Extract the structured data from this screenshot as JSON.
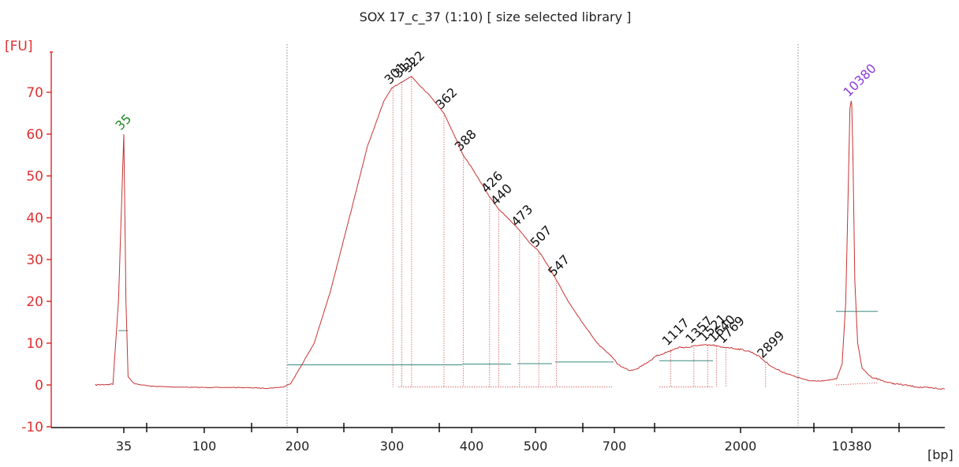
{
  "chart_data": {
    "type": "line",
    "title": "SOX 17_c_37 (1:10)  [ size selected library ]",
    "ylabel": "[FU]",
    "xlabel": "[bp]",
    "ylim": [
      -11,
      76
    ],
    "y_ticks": [
      -10,
      0,
      10,
      20,
      30,
      40,
      50,
      60,
      70
    ],
    "x_tick_labels": [
      "35",
      "100",
      "200",
      "300",
      "400",
      "500",
      "700",
      "2000",
      "10380"
    ],
    "grid": false,
    "colors": {
      "trace": "#c83232",
      "axis": "#e03030",
      "lower_marker": "#1f8a1f",
      "upper_marker": "#8a3cdc",
      "baseline": "#3a8a80"
    },
    "trace": {
      "x": [
        30,
        33,
        34,
        35,
        36,
        37,
        40,
        50,
        70,
        100,
        130,
        160,
        180,
        190,
        200,
        215,
        230,
        250,
        270,
        290,
        300,
        311,
        322,
        330,
        345,
        362,
        375,
        388,
        400,
        426,
        440,
        460,
        473,
        490,
        507,
        525,
        547,
        575,
        610,
        650,
        690,
        720,
        760,
        800,
        850,
        900,
        950,
        1000,
        1100,
        1200,
        1300,
        1400,
        1500,
        1600,
        1700,
        1800,
        2000,
        2300,
        2600,
        2900,
        3300,
        3800,
        4500,
        5500,
        7000,
        8300,
        9000,
        9500,
        9900,
        10100,
        10300,
        10380,
        10500,
        10700,
        11000,
        11500,
        12500,
        15000,
        20000,
        26000
      ],
      "y": [
        0,
        0.2,
        20,
        60,
        20,
        2,
        0.3,
        -0.3,
        -0.5,
        -0.6,
        -0.6,
        -0.8,
        -0.5,
        0.3,
        3,
        10,
        22,
        40,
        57,
        68,
        71,
        72.5,
        73.8,
        72,
        69,
        65,
        60,
        55,
        52,
        45,
        42,
        39,
        37,
        34,
        32,
        29,
        25,
        20,
        15,
        10,
        7,
        5,
        4,
        3.5,
        4,
        5,
        6,
        7,
        8,
        9,
        9,
        9.5,
        9.5,
        9.5,
        9,
        9,
        8.5,
        8,
        7,
        5.5,
        4,
        3,
        2,
        1,
        1,
        1.5,
        5,
        20,
        50,
        66,
        68,
        67,
        55,
        25,
        10,
        4,
        2,
        0.5,
        -0.5,
        -1
      ]
    },
    "marker_labels": [
      "35",
      "10380"
    ],
    "peaks": [
      {
        "label": "35",
        "x": 35,
        "y": 60,
        "type": "lower_marker"
      },
      {
        "label": "301",
        "x": 301,
        "y": 71,
        "type": "peak"
      },
      {
        "label": "311",
        "x": 311,
        "y": 72.5,
        "type": "peak"
      },
      {
        "label": "322",
        "x": 322,
        "y": 73.8,
        "type": "peak"
      },
      {
        "label": "362",
        "x": 362,
        "y": 65,
        "type": "peak"
      },
      {
        "label": "388",
        "x": 388,
        "y": 55,
        "type": "peak"
      },
      {
        "label": "426",
        "x": 426,
        "y": 45,
        "type": "peak"
      },
      {
        "label": "440",
        "x": 440,
        "y": 42,
        "type": "peak"
      },
      {
        "label": "473",
        "x": 473,
        "y": 37,
        "type": "peak"
      },
      {
        "label": "507",
        "x": 507,
        "y": 32,
        "type": "peak"
      },
      {
        "label": "547",
        "x": 547,
        "y": 25,
        "type": "peak"
      },
      {
        "label": "1117",
        "x": 1117,
        "y": 8.5,
        "type": "peak"
      },
      {
        "label": "1357",
        "x": 1357,
        "y": 9,
        "type": "peak"
      },
      {
        "label": "1521",
        "x": 1521,
        "y": 9.5,
        "type": "peak"
      },
      {
        "label": "1640",
        "x": 1640,
        "y": 9.3,
        "type": "peak"
      },
      {
        "label": "1769",
        "x": 1769,
        "y": 9,
        "type": "peak"
      },
      {
        "label": "2899",
        "x": 2899,
        "y": 5.5,
        "type": "peak"
      },
      {
        "label": "10380",
        "x": 10380,
        "y": 68,
        "type": "upper_marker"
      }
    ]
  }
}
